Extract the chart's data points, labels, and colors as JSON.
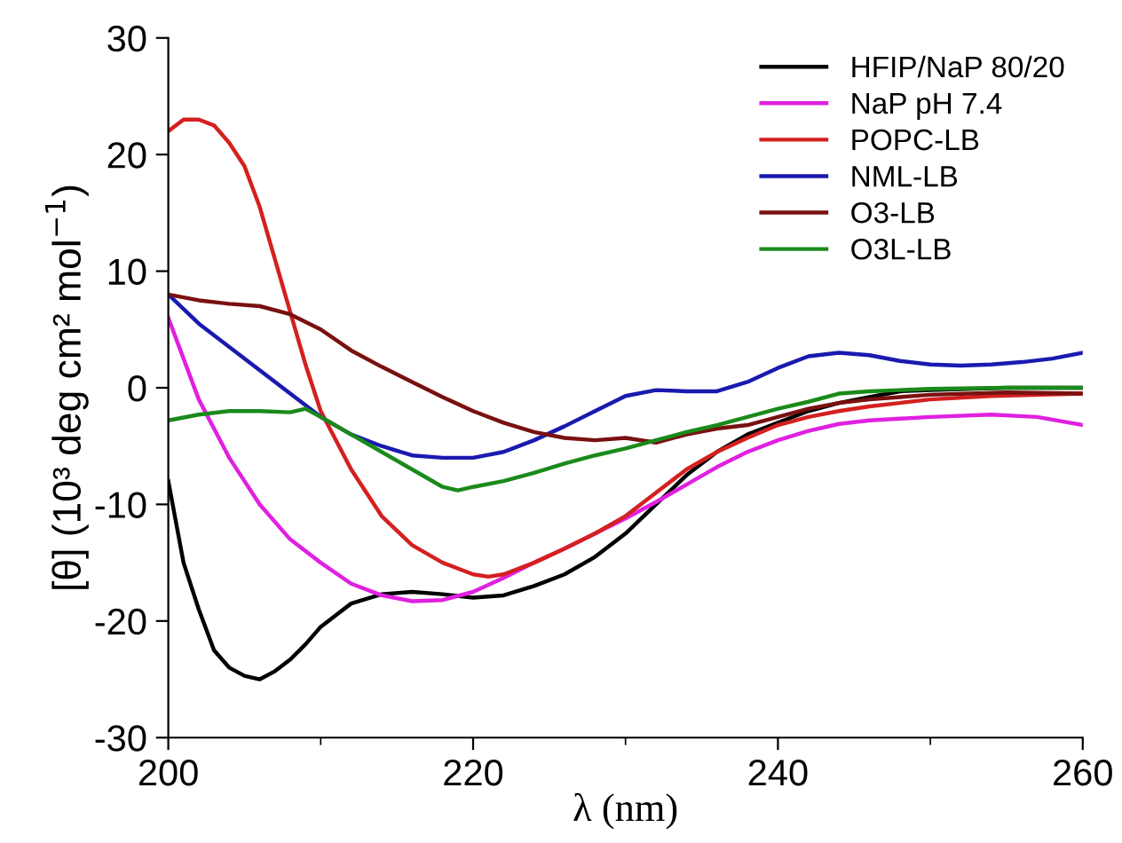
{
  "chart_data": {
    "type": "line",
    "xlabel": "λ (nm)",
    "ylabel": "[θ] (10³ deg cm² mol$^{−1}$)",
    "xlim": [
      200,
      260
    ],
    "xticks": [
      200,
      220,
      240,
      260
    ],
    "ylim": [
      -30,
      30
    ],
    "yticks": [
      -30,
      -20,
      -10,
      0,
      10,
      20,
      30
    ],
    "grid": false,
    "legend": "top right",
    "marker": "none",
    "line_style": "solid",
    "series": [
      {
        "name": "HFIP/NaP 80/20",
        "color": "#000000",
        "x": [
          200,
          201,
          202,
          203,
          204,
          205,
          206,
          207,
          208,
          209,
          210,
          211,
          212,
          214,
          216,
          218,
          220,
          222,
          224,
          226,
          228,
          230,
          232,
          234,
          236,
          238,
          240,
          242,
          244,
          246,
          248,
          250,
          255,
          260
        ],
        "values": [
          -8,
          -15,
          -19,
          -22.5,
          -24,
          -24.7,
          -25,
          -24.3,
          -23.3,
          -22,
          -20.5,
          -19.5,
          -18.5,
          -17.7,
          -17.5,
          -17.7,
          -18,
          -17.8,
          -17,
          -16,
          -14.5,
          -12.5,
          -10,
          -7.5,
          -5.5,
          -4,
          -3,
          -2,
          -1.3,
          -0.8,
          -0.3,
          -0.2,
          0,
          0
        ]
      },
      {
        "name": "NaP pH 7.4",
        "color": "#e020e0",
        "x": [
          200,
          202,
          204,
          206,
          208,
          210,
          212,
          214,
          216,
          218,
          220,
          222,
          224,
          226,
          228,
          230,
          232,
          234,
          236,
          238,
          240,
          242,
          244,
          246,
          250,
          254,
          257,
          260
        ],
        "values": [
          6,
          -1,
          -6,
          -10,
          -13,
          -15,
          -16.8,
          -17.8,
          -18.3,
          -18.2,
          -17.5,
          -16.3,
          -15,
          -13.8,
          -12.5,
          -11.2,
          -9.8,
          -8.3,
          -6.8,
          -5.5,
          -4.5,
          -3.7,
          -3.1,
          -2.8,
          -2.5,
          -2.3,
          -2.5,
          -3.2
        ]
      },
      {
        "name": "POPC-LB",
        "color": "#d42020",
        "x": [
          200,
          201,
          202,
          203,
          204,
          205,
          206,
          207,
          208,
          209,
          210,
          212,
          214,
          216,
          218,
          220,
          221,
          222,
          224,
          226,
          228,
          230,
          232,
          234,
          236,
          238,
          240,
          242,
          244,
          246,
          248,
          250,
          254,
          260
        ],
        "values": [
          22,
          23,
          23,
          22.5,
          21,
          19,
          15.5,
          11,
          6.5,
          2,
          -2,
          -7,
          -11,
          -13.5,
          -15,
          -16,
          -16.2,
          -16,
          -15,
          -13.8,
          -12.5,
          -11,
          -9,
          -7,
          -5.5,
          -4.3,
          -3.2,
          -2.5,
          -2,
          -1.6,
          -1.3,
          -1,
          -0.7,
          -0.5
        ]
      },
      {
        "name": "NML-LB",
        "color": "#1a1ab0",
        "x": [
          200,
          202,
          204,
          206,
          208,
          210,
          212,
          214,
          216,
          218,
          220,
          222,
          224,
          226,
          228,
          230,
          232,
          234,
          236,
          238,
          240,
          242,
          244,
          246,
          248,
          250,
          252,
          254,
          256,
          258,
          260
        ],
        "values": [
          8,
          5.5,
          3.5,
          1.5,
          -0.5,
          -2.5,
          -4,
          -5,
          -5.8,
          -6,
          -6,
          -5.5,
          -4.5,
          -3.3,
          -2,
          -0.7,
          -0.2,
          -0.3,
          -0.3,
          0.5,
          1.7,
          2.7,
          3,
          2.8,
          2.3,
          2,
          1.9,
          2,
          2.2,
          2.5,
          3
        ]
      },
      {
        "name": "O3-LB",
        "color": "#7a1010",
        "x": [
          200,
          202,
          204,
          206,
          208,
          210,
          212,
          214,
          216,
          218,
          220,
          222,
          224,
          226,
          228,
          230,
          232,
          234,
          236,
          238,
          240,
          242,
          244,
          246,
          248,
          250,
          255,
          260
        ],
        "values": [
          8,
          7.5,
          7.2,
          7,
          6.3,
          5,
          3.2,
          1.8,
          0.5,
          -0.8,
          -2,
          -3,
          -3.8,
          -4.3,
          -4.5,
          -4.3,
          -4.7,
          -4,
          -3.5,
          -3.2,
          -2.5,
          -1.8,
          -1.3,
          -1,
          -0.8,
          -0.6,
          -0.4,
          -0.5
        ]
      },
      {
        "name": "O3L-LB",
        "color": "#1a8a1a",
        "x": [
          200,
          202,
          204,
          206,
          208,
          209,
          210,
          212,
          214,
          216,
          218,
          219,
          220,
          222,
          224,
          226,
          228,
          230,
          232,
          234,
          236,
          238,
          240,
          242,
          244,
          246,
          248,
          250,
          255,
          260
        ],
        "values": [
          -2.8,
          -2.3,
          -2,
          -2,
          -2.1,
          -1.8,
          -2.5,
          -4,
          -5.5,
          -7,
          -8.5,
          -8.8,
          -8.5,
          -8,
          -7.3,
          -6.5,
          -5.8,
          -5.2,
          -4.5,
          -3.8,
          -3.2,
          -2.5,
          -1.8,
          -1.2,
          -0.5,
          -0.3,
          -0.2,
          -0.1,
          0,
          0
        ]
      }
    ]
  }
}
